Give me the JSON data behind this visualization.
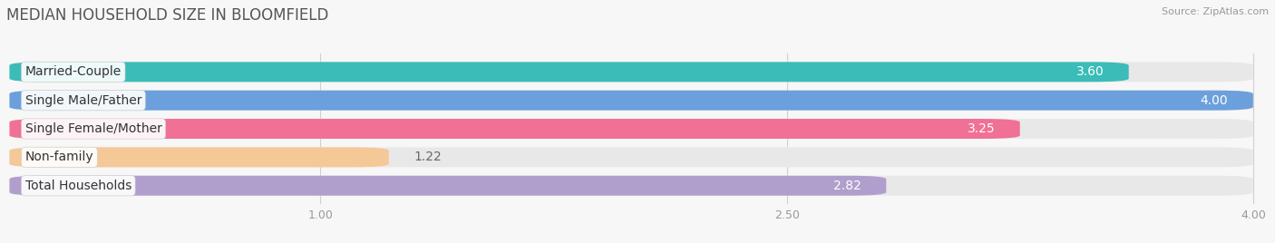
{
  "title": "MEDIAN HOUSEHOLD SIZE IN BLOOMFIELD",
  "source": "Source: ZipAtlas.com",
  "categories": [
    "Married-Couple",
    "Single Male/Father",
    "Single Female/Mother",
    "Non-family",
    "Total Households"
  ],
  "values": [
    3.6,
    4.0,
    3.25,
    1.22,
    2.82
  ],
  "bar_colors": [
    "#3bbcb8",
    "#6ca0dc",
    "#f07096",
    "#f5c897",
    "#b09fcc"
  ],
  "xlim_start": 0.0,
  "xlim_end": 4.0,
  "xticks": [
    1.0,
    2.5,
    4.0
  ],
  "xtick_labels": [
    "1.00",
    "2.50",
    "4.00"
  ],
  "label_fontsize": 10,
  "value_fontsize": 10,
  "title_fontsize": 12,
  "source_fontsize": 8,
  "bar_height": 0.7,
  "background_color": "#f7f7f7",
  "bar_bg_color": "#e8e8e8"
}
